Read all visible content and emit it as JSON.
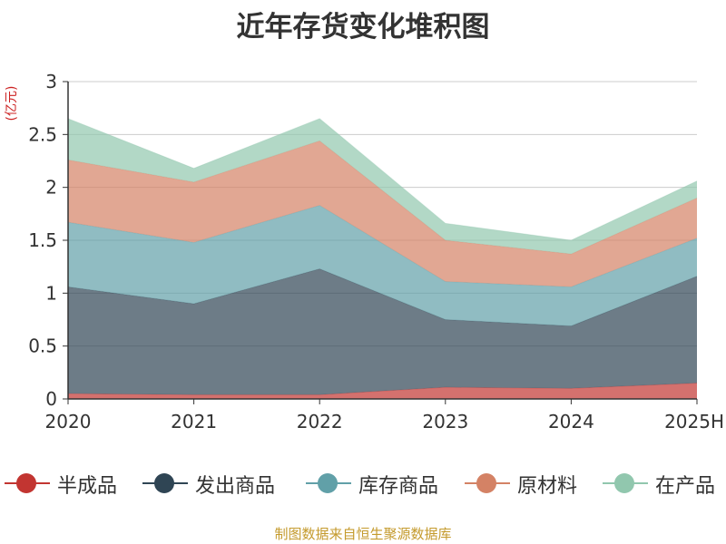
{
  "chart_data": {
    "type": "area",
    "stacked": true,
    "title": "近年存货变化堆积图",
    "unit_label": "(亿元)",
    "categories": [
      "2020",
      "2021",
      "2022",
      "2023",
      "2024",
      "2025H"
    ],
    "ylim": [
      0,
      3
    ],
    "yticks": [
      {
        "value": 0,
        "label": "0"
      },
      {
        "value": 0.5,
        "label": "0.5"
      },
      {
        "value": 1,
        "label": "1"
      },
      {
        "value": 1.5,
        "label": "1.5"
      },
      {
        "value": 2,
        "label": "2"
      },
      {
        "value": 2.5,
        "label": "2.5"
      },
      {
        "value": 3,
        "label": "3"
      }
    ],
    "grid": true,
    "legend_position": "bottom",
    "series": [
      {
        "name": "半成品",
        "color": "#c23531",
        "values": [
          0.05,
          0.04,
          0.04,
          0.11,
          0.1,
          0.15
        ]
      },
      {
        "name": "发出商品",
        "color": "#2f4554",
        "values": [
          1.01,
          0.86,
          1.19,
          0.64,
          0.59,
          1.01
        ]
      },
      {
        "name": "库存商品",
        "color": "#61a0a8",
        "values": [
          0.61,
          0.58,
          0.6,
          0.36,
          0.37,
          0.36
        ]
      },
      {
        "name": "原材料",
        "color": "#d48265",
        "values": [
          0.59,
          0.57,
          0.61,
          0.39,
          0.31,
          0.38
        ]
      },
      {
        "name": "在产品",
        "color": "#91c7ae",
        "values": [
          0.39,
          0.13,
          0.21,
          0.16,
          0.13,
          0.16
        ]
      }
    ]
  },
  "footer": {
    "source": "制图数据来自恒生聚源数据库"
  }
}
